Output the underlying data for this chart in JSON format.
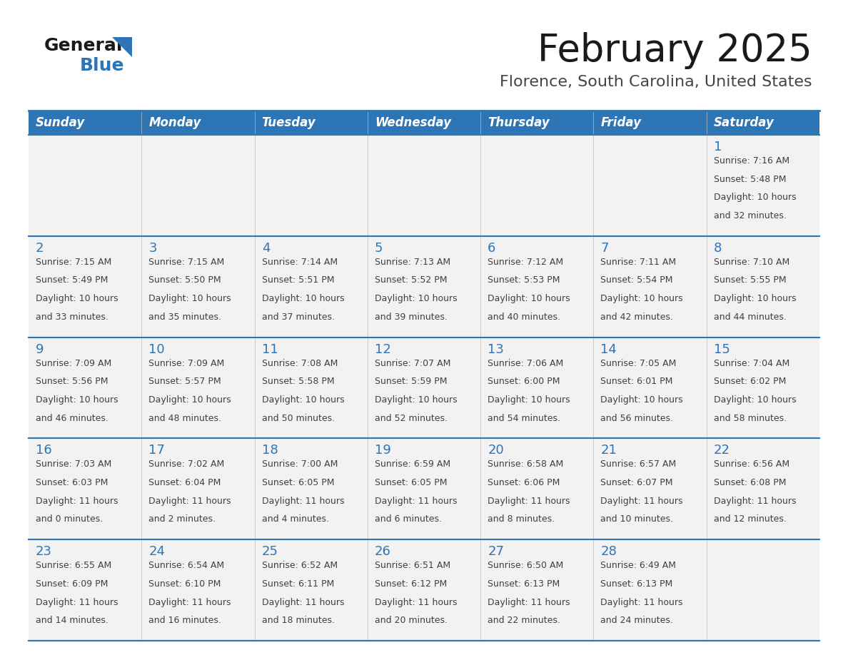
{
  "title": "February 2025",
  "subtitle": "Florence, South Carolina, United States",
  "header_bg": "#2E75B6",
  "header_text": "#FFFFFF",
  "day_names": [
    "Sunday",
    "Monday",
    "Tuesday",
    "Wednesday",
    "Thursday",
    "Friday",
    "Saturday"
  ],
  "cell_border_color": "#2E75B6",
  "day_num_color": "#2E75B6",
  "info_color": "#404040",
  "separator_color": "#2E75B6",
  "bg_color": "#FFFFFF",
  "cell_bg": "#F7F7F7",
  "logo_general_color": "#1A1A1A",
  "logo_blue_color": "#2E75B6",
  "calendar_data": [
    [
      null,
      null,
      null,
      null,
      null,
      null,
      {
        "day": 1,
        "sunrise": "7:16 AM",
        "sunset": "5:48 PM",
        "daylight": "10 hours and 32 minutes."
      }
    ],
    [
      {
        "day": 2,
        "sunrise": "7:15 AM",
        "sunset": "5:49 PM",
        "daylight": "10 hours and 33 minutes."
      },
      {
        "day": 3,
        "sunrise": "7:15 AM",
        "sunset": "5:50 PM",
        "daylight": "10 hours and 35 minutes."
      },
      {
        "day": 4,
        "sunrise": "7:14 AM",
        "sunset": "5:51 PM",
        "daylight": "10 hours and 37 minutes."
      },
      {
        "day": 5,
        "sunrise": "7:13 AM",
        "sunset": "5:52 PM",
        "daylight": "10 hours and 39 minutes."
      },
      {
        "day": 6,
        "sunrise": "7:12 AM",
        "sunset": "5:53 PM",
        "daylight": "10 hours and 40 minutes."
      },
      {
        "day": 7,
        "sunrise": "7:11 AM",
        "sunset": "5:54 PM",
        "daylight": "10 hours and 42 minutes."
      },
      {
        "day": 8,
        "sunrise": "7:10 AM",
        "sunset": "5:55 PM",
        "daylight": "10 hours and 44 minutes."
      }
    ],
    [
      {
        "day": 9,
        "sunrise": "7:09 AM",
        "sunset": "5:56 PM",
        "daylight": "10 hours and 46 minutes."
      },
      {
        "day": 10,
        "sunrise": "7:09 AM",
        "sunset": "5:57 PM",
        "daylight": "10 hours and 48 minutes."
      },
      {
        "day": 11,
        "sunrise": "7:08 AM",
        "sunset": "5:58 PM",
        "daylight": "10 hours and 50 minutes."
      },
      {
        "day": 12,
        "sunrise": "7:07 AM",
        "sunset": "5:59 PM",
        "daylight": "10 hours and 52 minutes."
      },
      {
        "day": 13,
        "sunrise": "7:06 AM",
        "sunset": "6:00 PM",
        "daylight": "10 hours and 54 minutes."
      },
      {
        "day": 14,
        "sunrise": "7:05 AM",
        "sunset": "6:01 PM",
        "daylight": "10 hours and 56 minutes."
      },
      {
        "day": 15,
        "sunrise": "7:04 AM",
        "sunset": "6:02 PM",
        "daylight": "10 hours and 58 minutes."
      }
    ],
    [
      {
        "day": 16,
        "sunrise": "7:03 AM",
        "sunset": "6:03 PM",
        "daylight": "11 hours and 0 minutes."
      },
      {
        "day": 17,
        "sunrise": "7:02 AM",
        "sunset": "6:04 PM",
        "daylight": "11 hours and 2 minutes."
      },
      {
        "day": 18,
        "sunrise": "7:00 AM",
        "sunset": "6:05 PM",
        "daylight": "11 hours and 4 minutes."
      },
      {
        "day": 19,
        "sunrise": "6:59 AM",
        "sunset": "6:05 PM",
        "daylight": "11 hours and 6 minutes."
      },
      {
        "day": 20,
        "sunrise": "6:58 AM",
        "sunset": "6:06 PM",
        "daylight": "11 hours and 8 minutes."
      },
      {
        "day": 21,
        "sunrise": "6:57 AM",
        "sunset": "6:07 PM",
        "daylight": "11 hours and 10 minutes."
      },
      {
        "day": 22,
        "sunrise": "6:56 AM",
        "sunset": "6:08 PM",
        "daylight": "11 hours and 12 minutes."
      }
    ],
    [
      {
        "day": 23,
        "sunrise": "6:55 AM",
        "sunset": "6:09 PM",
        "daylight": "11 hours and 14 minutes."
      },
      {
        "day": 24,
        "sunrise": "6:54 AM",
        "sunset": "6:10 PM",
        "daylight": "11 hours and 16 minutes."
      },
      {
        "day": 25,
        "sunrise": "6:52 AM",
        "sunset": "6:11 PM",
        "daylight": "11 hours and 18 minutes."
      },
      {
        "day": 26,
        "sunrise": "6:51 AM",
        "sunset": "6:12 PM",
        "daylight": "11 hours and 20 minutes."
      },
      {
        "day": 27,
        "sunrise": "6:50 AM",
        "sunset": "6:13 PM",
        "daylight": "11 hours and 22 minutes."
      },
      {
        "day": 28,
        "sunrise": "6:49 AM",
        "sunset": "6:13 PM",
        "daylight": "11 hours and 24 minutes."
      },
      null
    ]
  ],
  "n_rows": 5,
  "n_cols": 7
}
